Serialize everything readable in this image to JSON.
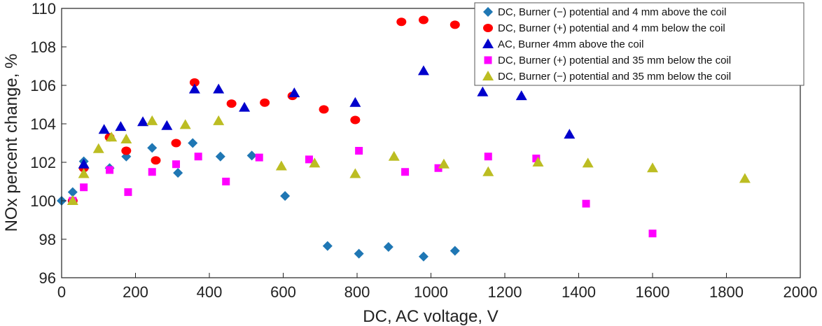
{
  "chart_data": {
    "type": "scatter",
    "xlabel": "DC, AC voltage, V",
    "ylabel": "NOx percent change, %",
    "xlim": [
      0,
      2000
    ],
    "ylim": [
      96,
      110
    ],
    "xticks": [
      "0",
      "200",
      "400",
      "600",
      "800",
      "1000",
      "1200",
      "1400",
      "1600",
      "1800",
      "2000"
    ],
    "yticks": [
      "96",
      "98",
      "100",
      "102",
      "104",
      "106",
      "108",
      "110"
    ],
    "grid": false,
    "legend_position": "top-right",
    "series": [
      {
        "name": "DC, Burner (−) potential and 4 mm above the coil",
        "marker": "diamond",
        "color": "#1f77b4",
        "points": [
          [
            0,
            100.0
          ],
          [
            30,
            100.45
          ],
          [
            60,
            102.05
          ],
          [
            130,
            101.7
          ],
          [
            175,
            102.3
          ],
          [
            245,
            102.75
          ],
          [
            315,
            101.45
          ],
          [
            355,
            103.0
          ],
          [
            430,
            102.3
          ],
          [
            515,
            102.35
          ],
          [
            605,
            100.25
          ],
          [
            720,
            97.65
          ],
          [
            805,
            97.25
          ],
          [
            885,
            97.6
          ],
          [
            980,
            97.1
          ],
          [
            1065,
            97.4
          ]
        ]
      },
      {
        "name": "DC, Burner (+) potential and 4 mm below the coil",
        "marker": "circle",
        "color": "#ff0000",
        "points": [
          [
            30,
            100.0
          ],
          [
            60,
            101.7
          ],
          [
            130,
            103.3
          ],
          [
            175,
            102.6
          ],
          [
            255,
            102.1
          ],
          [
            310,
            103.0
          ],
          [
            360,
            106.15
          ],
          [
            460,
            105.05
          ],
          [
            550,
            105.1
          ],
          [
            625,
            105.45
          ],
          [
            710,
            104.75
          ],
          [
            795,
            104.2
          ],
          [
            920,
            109.3
          ],
          [
            980,
            109.4
          ],
          [
            1065,
            109.15
          ]
        ]
      },
      {
        "name": "AC, Burner 4mm above the coil",
        "marker": "triangle",
        "color": "#0000cc",
        "points": [
          [
            60,
            101.9
          ],
          [
            115,
            103.7
          ],
          [
            160,
            103.85
          ],
          [
            220,
            104.1
          ],
          [
            285,
            103.9
          ],
          [
            360,
            105.8
          ],
          [
            425,
            105.8
          ],
          [
            495,
            104.85
          ],
          [
            630,
            105.6
          ],
          [
            795,
            105.1
          ],
          [
            980,
            106.75
          ],
          [
            1140,
            105.65
          ],
          [
            1245,
            105.45
          ],
          [
            1375,
            103.45
          ]
        ]
      },
      {
        "name": "DC, Burner (+) potential and 35 mm below the coil",
        "marker": "square",
        "color": "#ff00ff",
        "points": [
          [
            30,
            100.0
          ],
          [
            60,
            100.7
          ],
          [
            130,
            101.6
          ],
          [
            180,
            100.45
          ],
          [
            245,
            101.5
          ],
          [
            310,
            101.9
          ],
          [
            370,
            102.3
          ],
          [
            445,
            101.0
          ],
          [
            535,
            102.25
          ],
          [
            670,
            102.15
          ],
          [
            805,
            102.6
          ],
          [
            930,
            101.5
          ],
          [
            1020,
            101.7
          ],
          [
            1155,
            102.3
          ],
          [
            1285,
            102.2
          ],
          [
            1420,
            99.85
          ],
          [
            1600,
            98.3
          ]
        ]
      },
      {
        "name": "DC, Burner (−) potential and 35 mm below the coil",
        "marker": "triangle",
        "color": "#bcbd22",
        "points": [
          [
            30,
            100.0
          ],
          [
            60,
            101.4
          ],
          [
            100,
            102.7
          ],
          [
            135,
            103.3
          ],
          [
            175,
            103.2
          ],
          [
            245,
            104.15
          ],
          [
            335,
            103.95
          ],
          [
            425,
            104.15
          ],
          [
            595,
            101.8
          ],
          [
            685,
            101.95
          ],
          [
            795,
            101.4
          ],
          [
            900,
            102.3
          ],
          [
            1035,
            101.9
          ],
          [
            1155,
            101.5
          ],
          [
            1290,
            102.0
          ],
          [
            1425,
            101.95
          ],
          [
            1600,
            101.7
          ],
          [
            1850,
            101.15
          ]
        ]
      }
    ]
  }
}
